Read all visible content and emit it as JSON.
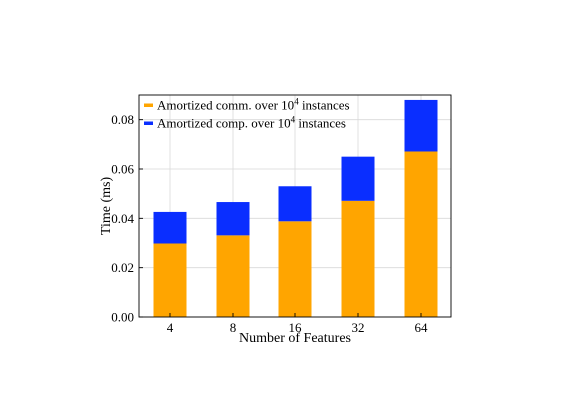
{
  "colors": {
    "comm": "#FFA500",
    "comp": "#0A2EFF",
    "grid": "#d9d9d9",
    "axis": "#000000"
  },
  "chart_data": {
    "type": "bar",
    "stacked": true,
    "title": "",
    "xlabel": "Number of Features",
    "ylabel": "Time (ms)",
    "categories": [
      "4",
      "8",
      "16",
      "32",
      "64"
    ],
    "ylim": [
      0,
      0.09
    ],
    "yticks": [
      "0.00",
      "0.02",
      "0.04",
      "0.06",
      "0.08"
    ],
    "grid": true,
    "legend_position": "top-left",
    "legend": [
      {
        "prefix": "Amortized comm. over 10",
        "sup": "4",
        "suffix": " instances"
      },
      {
        "prefix": "Amortized comp. over 10",
        "sup": "4",
        "suffix": " instances"
      }
    ],
    "series": [
      {
        "key": "comm",
        "values": [
          0.0298,
          0.0331,
          0.0388,
          0.0471,
          0.0671
        ]
      },
      {
        "key": "comp",
        "values": [
          0.0128,
          0.0135,
          0.0142,
          0.0179,
          0.0209
        ]
      }
    ]
  }
}
